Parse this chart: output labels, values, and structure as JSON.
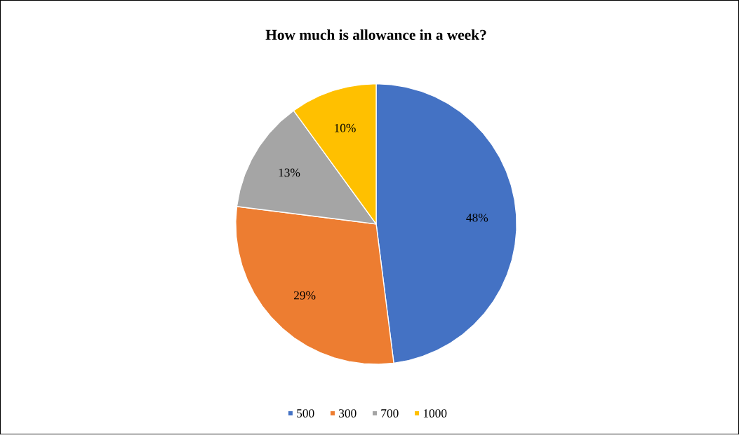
{
  "chart_data": {
    "type": "pie",
    "title": "How much is allowance in a week?",
    "categories": [
      "500",
      "300",
      "700",
      "1000"
    ],
    "values": [
      48,
      29,
      13,
      10
    ],
    "value_labels": [
      "48%",
      "29%",
      "13%",
      "10%"
    ],
    "colors": [
      "#4472c4",
      "#ed7d31",
      "#a5a5a5",
      "#ffc000"
    ],
    "legend": "bottom"
  }
}
